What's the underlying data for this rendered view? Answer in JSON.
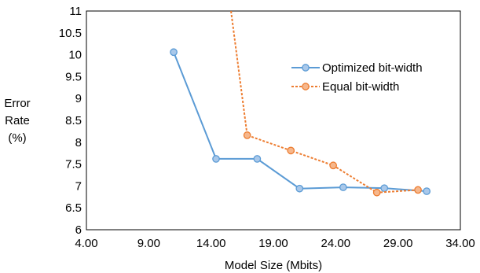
{
  "chart_data": {
    "type": "line",
    "xlabel": "Model Size (Mbits)",
    "ylabel_lines": [
      "Error",
      "Rate",
      "(%)"
    ],
    "xlim": [
      4,
      34
    ],
    "ylim": [
      6,
      11
    ],
    "x_ticks": [
      4,
      9,
      14,
      19,
      24,
      29,
      34
    ],
    "x_tick_labels": [
      "4.00",
      "9.00",
      "14.00",
      "19.00",
      "24.00",
      "29.00",
      "34.00"
    ],
    "y_ticks": [
      6,
      6.5,
      7,
      7.5,
      8,
      8.5,
      9,
      9.5,
      10,
      10.5,
      11
    ],
    "y_tick_labels": [
      "6",
      "6.5",
      "7",
      "7.5",
      "8",
      "8.5",
      "9",
      "9.5",
      "10",
      "10.5",
      "11"
    ],
    "grid": false,
    "legend_position": "right",
    "series": [
      {
        "name": "Optimized bit-width",
        "color": "#5b9bd5",
        "line_style": "solid",
        "marker": "circle",
        "x": [
          11.0,
          14.4,
          17.7,
          21.1,
          24.6,
          27.9,
          31.3
        ],
        "y": [
          10.06,
          7.62,
          7.62,
          6.94,
          6.97,
          6.95,
          6.88
        ]
      },
      {
        "name": "Equal bit-width",
        "color": "#ed7d31",
        "line_style": "dashed",
        "marker": "circle",
        "x": [
          15.6,
          16.9,
          20.4,
          23.8,
          27.3,
          30.6
        ],
        "y": [
          11.0,
          8.16,
          7.81,
          7.47,
          6.85,
          6.91
        ]
      }
    ]
  }
}
